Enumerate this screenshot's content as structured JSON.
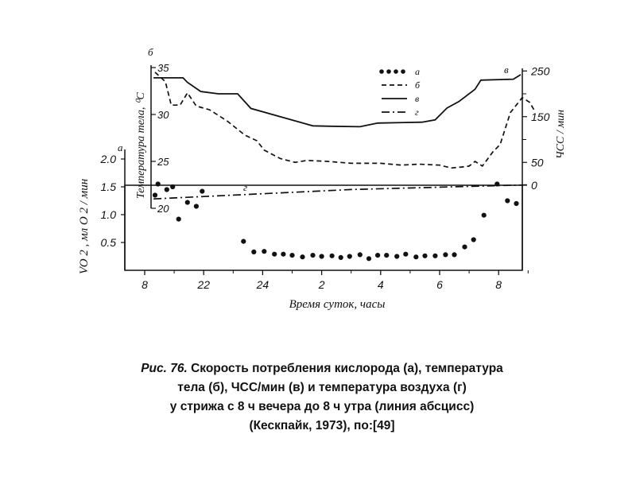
{
  "chart_data": {
    "type": "line",
    "xlabel": "Время суток, часы",
    "x_ticks": [
      "8",
      "22",
      "24",
      "2",
      "4",
      "6",
      "8"
    ],
    "left_axis_a": {
      "letter": "а",
      "ylabel": "VO 2 , мл O 2 / мин",
      "ticks": [
        "0.5",
        "1.0",
        "1.5",
        "2.0"
      ],
      "ylim": [
        0,
        2.2
      ]
    },
    "inner_axis_b": {
      "letter": "б",
      "ylabel": "Температура тела, ⁰С",
      "ticks": [
        "20",
        "25",
        "30",
        "35"
      ],
      "ylim": [
        20,
        35.5
      ]
    },
    "right_axis_v": {
      "letter": "в",
      "ylabel": "ЧСС / мин",
      "ticks": [
        "0",
        "50",
        "150",
        "250"
      ],
      "ylim": [
        0,
        250
      ]
    },
    "legend": {
      "placement": "top-right",
      "entries": [
        {
          "key": "а",
          "style": "dots"
        },
        {
          "key": "б",
          "style": "dashed"
        },
        {
          "key": "в",
          "style": "solid"
        },
        {
          "key": "г",
          "style": "dash-dot"
        }
      ]
    },
    "inline_label_g": "г",
    "series": [
      {
        "key": "а",
        "style": "dots",
        "axis": "left_axis_a",
        "points": [
          [
            20.45,
            1.55
          ],
          [
            20.75,
            1.45
          ],
          [
            20.95,
            1.5
          ],
          [
            21.15,
            0.92
          ],
          [
            21.45,
            1.22
          ],
          [
            21.75,
            1.15
          ],
          [
            21.95,
            1.42
          ],
          [
            20.35,
            1.35
          ],
          [
            23.35,
            0.52
          ],
          [
            23.7,
            0.33
          ],
          [
            24.05,
            0.34
          ],
          [
            24.4,
            0.29
          ],
          [
            24.7,
            0.29
          ],
          [
            25.0,
            0.27
          ],
          [
            25.35,
            0.24
          ],
          [
            25.7,
            0.27
          ],
          [
            26.0,
            0.25
          ],
          [
            26.35,
            0.26
          ],
          [
            26.65,
            0.23
          ],
          [
            26.95,
            0.25
          ],
          [
            27.3,
            0.28
          ],
          [
            27.6,
            0.21
          ],
          [
            27.9,
            0.27
          ],
          [
            28.2,
            0.27
          ],
          [
            28.55,
            0.25
          ],
          [
            28.85,
            0.29
          ],
          [
            29.2,
            0.24
          ],
          [
            29.5,
            0.26
          ],
          [
            29.85,
            0.26
          ],
          [
            30.2,
            0.28
          ],
          [
            30.5,
            0.28
          ],
          [
            30.85,
            0.42
          ],
          [
            31.15,
            0.55
          ],
          [
            31.5,
            0.99
          ],
          [
            31.95,
            1.55
          ],
          [
            32.3,
            1.25
          ],
          [
            32.6,
            1.2
          ]
        ]
      },
      {
        "key": "б",
        "style": "dashed",
        "axis": "inner_axis_b",
        "points": [
          [
            20.35,
            34.5
          ],
          [
            20.7,
            33.5
          ],
          [
            20.9,
            31.0
          ],
          [
            21.2,
            31.0
          ],
          [
            21.45,
            32.3
          ],
          [
            21.75,
            30.9
          ],
          [
            22.2,
            30.5
          ],
          [
            22.8,
            29.3
          ],
          [
            23.4,
            27.8
          ],
          [
            23.8,
            27.2
          ],
          [
            24.05,
            26.2
          ],
          [
            24.6,
            25.3
          ],
          [
            25.1,
            24.9
          ],
          [
            25.5,
            25.1
          ],
          [
            26.2,
            25.0
          ],
          [
            27.0,
            24.8
          ],
          [
            28.0,
            24.8
          ],
          [
            28.7,
            24.6
          ],
          [
            29.3,
            24.7
          ],
          [
            30.0,
            24.6
          ],
          [
            30.4,
            24.3
          ],
          [
            30.75,
            24.4
          ],
          [
            31.0,
            24.5
          ],
          [
            31.2,
            25.0
          ],
          [
            31.45,
            24.5
          ],
          [
            31.8,
            26.0
          ],
          [
            32.05,
            26.8
          ],
          [
            32.4,
            30.2
          ],
          [
            32.8,
            31.8
          ],
          [
            33.05,
            31.3
          ],
          [
            33.2,
            30.5
          ]
        ]
      },
      {
        "key": "в",
        "style": "solid",
        "axis": "right_axis_v",
        "points": [
          [
            20.3,
            235
          ],
          [
            21.3,
            235
          ],
          [
            21.45,
            225
          ],
          [
            21.9,
            205
          ],
          [
            22.5,
            200
          ],
          [
            23.15,
            200
          ],
          [
            23.6,
            168
          ],
          [
            24.7,
            148
          ],
          [
            25.7,
            130
          ],
          [
            26.3,
            129
          ],
          [
            27.3,
            128
          ],
          [
            27.9,
            136
          ],
          [
            29.4,
            138
          ],
          [
            29.85,
            143
          ],
          [
            30.25,
            169
          ],
          [
            30.65,
            183
          ],
          [
            31.2,
            210
          ],
          [
            31.4,
            230
          ],
          [
            32.5,
            232
          ],
          [
            32.75,
            242
          ]
        ]
      },
      {
        "key": "г",
        "style": "dash-dot",
        "axis": "inner_axis_b",
        "points": [
          [
            20.3,
            21.0
          ],
          [
            27.0,
            22.0
          ],
          [
            33.0,
            22.5
          ]
        ]
      }
    ]
  },
  "caption": {
    "fig_label": "Рис. 76.",
    "line1_rest": " Скорость потребления кислорода (а), температура",
    "line2": "тела (б), ЧСС/мин (в) и температура воздуха (г)",
    "line3": "у стрижа с 8 ч вечера до 8 ч утра (линия абсцисс)",
    "line4": "(Кескпайк, 1973), по:[49]"
  }
}
